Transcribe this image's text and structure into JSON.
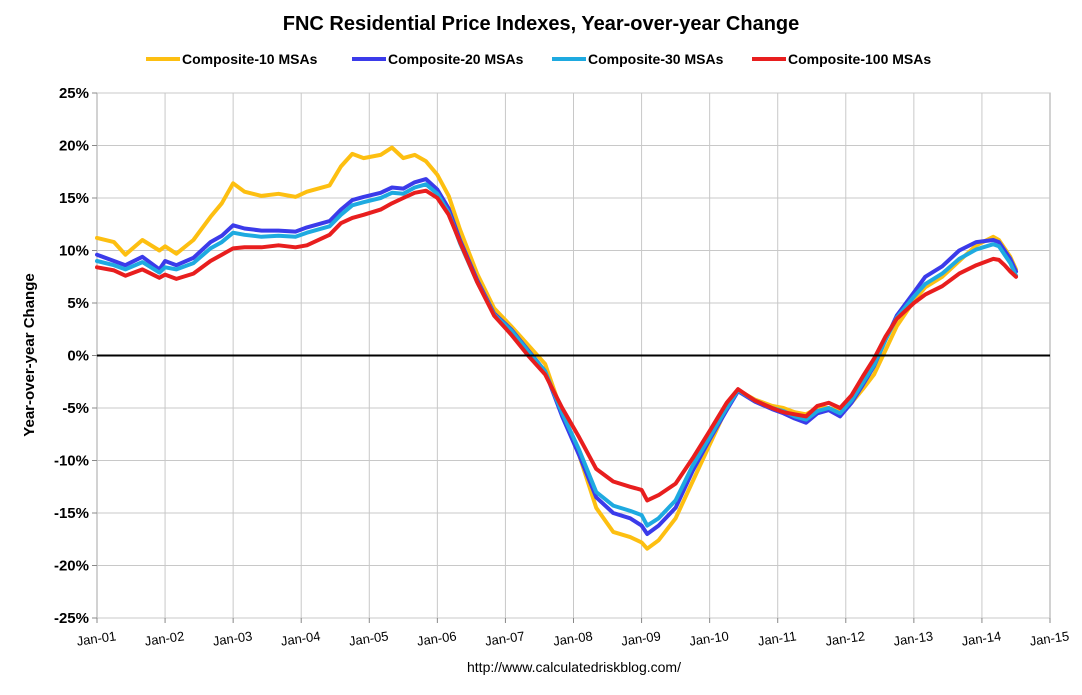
{
  "chart_data": {
    "type": "line",
    "title": "FNC Residential Price Indexes, Year-over-year Change",
    "ylabel": "Year-over-year Change",
    "xlabel": "",
    "source": "http://www.calculatedriskblog.com/",
    "ylim": [
      -25,
      25
    ],
    "xlim": [
      "2001-01",
      "2015-01"
    ],
    "grid": true,
    "legend_position": "top",
    "y_ticks": [
      25,
      20,
      15,
      10,
      5,
      0,
      -5,
      -10,
      -15,
      -20,
      -25
    ],
    "y_tick_labels": [
      "25%",
      "20%",
      "15%",
      "10%",
      "5%",
      "0%",
      "-5%",
      "-10%",
      "-15%",
      "-20%",
      "-25%"
    ],
    "x_tick_labels": [
      "Jan-01",
      "Jan-02",
      "Jan-03",
      "Jan-04",
      "Jan-05",
      "Jan-06",
      "Jan-07",
      "Jan-08",
      "Jan-09",
      "Jan-10",
      "Jan-11",
      "Jan-12",
      "Jan-13",
      "Jan-14",
      "Jan-15"
    ],
    "series": [
      {
        "name": "Composite-10 MSAs",
        "color": "#FDBF11",
        "points": [
          [
            "2001-01",
            11.2
          ],
          [
            "2001-04",
            10.8
          ],
          [
            "2001-06",
            9.6
          ],
          [
            "2001-09",
            11.0
          ],
          [
            "2001-12",
            10.0
          ],
          [
            "2002-01",
            10.4
          ],
          [
            "2002-03",
            9.7
          ],
          [
            "2002-06",
            11.0
          ],
          [
            "2002-09",
            13.2
          ],
          [
            "2002-11",
            14.5
          ],
          [
            "2003-01",
            16.4
          ],
          [
            "2003-03",
            15.6
          ],
          [
            "2003-06",
            15.2
          ],
          [
            "2003-09",
            15.4
          ],
          [
            "2003-12",
            15.1
          ],
          [
            "2004-02",
            15.6
          ],
          [
            "2004-06",
            16.2
          ],
          [
            "2004-08",
            18.0
          ],
          [
            "2004-10",
            19.2
          ],
          [
            "2004-12",
            18.8
          ],
          [
            "2005-03",
            19.1
          ],
          [
            "2005-05",
            19.8
          ],
          [
            "2005-07",
            18.8
          ],
          [
            "2005-09",
            19.1
          ],
          [
            "2005-11",
            18.5
          ],
          [
            "2006-01",
            17.2
          ],
          [
            "2006-03",
            15.2
          ],
          [
            "2006-05",
            12.0
          ],
          [
            "2006-08",
            7.8
          ],
          [
            "2006-11",
            4.5
          ],
          [
            "2007-02",
            2.8
          ],
          [
            "2007-05",
            1.0
          ],
          [
            "2007-08",
            -0.8
          ],
          [
            "2007-11",
            -5.5
          ],
          [
            "2008-02",
            -9.5
          ],
          [
            "2008-05",
            -14.5
          ],
          [
            "2008-08",
            -16.8
          ],
          [
            "2008-11",
            -17.3
          ],
          [
            "2009-01",
            -17.8
          ],
          [
            "2009-02",
            -18.4
          ],
          [
            "2009-04",
            -17.6
          ],
          [
            "2009-07",
            -15.5
          ],
          [
            "2009-10",
            -12.0
          ],
          [
            "2010-01",
            -8.5
          ],
          [
            "2010-04",
            -5.0
          ],
          [
            "2010-06",
            -3.3
          ],
          [
            "2010-09",
            -4.2
          ],
          [
            "2010-12",
            -4.8
          ],
          [
            "2011-02",
            -5.0
          ],
          [
            "2011-04",
            -5.4
          ],
          [
            "2011-06",
            -5.6
          ],
          [
            "2011-08",
            -5.0
          ],
          [
            "2011-10",
            -5.0
          ],
          [
            "2011-12",
            -5.3
          ],
          [
            "2012-02",
            -4.5
          ],
          [
            "2012-04",
            -3.2
          ],
          [
            "2012-06",
            -1.8
          ],
          [
            "2012-08",
            0.5
          ],
          [
            "2012-10",
            2.8
          ],
          [
            "2013-01",
            5.2
          ],
          [
            "2013-03",
            6.5
          ],
          [
            "2013-06",
            7.5
          ],
          [
            "2013-09",
            9.0
          ],
          [
            "2013-12",
            10.5
          ],
          [
            "2014-03",
            11.3
          ],
          [
            "2014-04",
            11.0
          ],
          [
            "2014-05",
            10.2
          ],
          [
            "2014-06",
            9.4
          ],
          [
            "2014-07",
            8.2
          ]
        ]
      },
      {
        "name": "Composite-20 MSAs",
        "color": "#3B3BEA",
        "points": [
          [
            "2001-01",
            9.6
          ],
          [
            "2001-04",
            9.0
          ],
          [
            "2001-06",
            8.6
          ],
          [
            "2001-09",
            9.4
          ],
          [
            "2001-12",
            8.2
          ],
          [
            "2002-01",
            9.0
          ],
          [
            "2002-03",
            8.6
          ],
          [
            "2002-06",
            9.3
          ],
          [
            "2002-09",
            10.8
          ],
          [
            "2002-11",
            11.4
          ],
          [
            "2003-01",
            12.4
          ],
          [
            "2003-03",
            12.1
          ],
          [
            "2003-06",
            11.9
          ],
          [
            "2003-09",
            11.9
          ],
          [
            "2003-12",
            11.8
          ],
          [
            "2004-02",
            12.2
          ],
          [
            "2004-06",
            12.8
          ],
          [
            "2004-08",
            13.9
          ],
          [
            "2004-10",
            14.8
          ],
          [
            "2004-12",
            15.1
          ],
          [
            "2005-03",
            15.5
          ],
          [
            "2005-05",
            16.0
          ],
          [
            "2005-07",
            15.9
          ],
          [
            "2005-09",
            16.5
          ],
          [
            "2005-11",
            16.8
          ],
          [
            "2006-01",
            15.8
          ],
          [
            "2006-03",
            14.0
          ],
          [
            "2006-05",
            11.0
          ],
          [
            "2006-08",
            7.2
          ],
          [
            "2006-11",
            4.0
          ],
          [
            "2007-02",
            2.5
          ],
          [
            "2007-05",
            0.5
          ],
          [
            "2007-08",
            -1.5
          ],
          [
            "2007-11",
            -5.8
          ],
          [
            "2008-02",
            -9.5
          ],
          [
            "2008-05",
            -13.5
          ],
          [
            "2008-08",
            -15.0
          ],
          [
            "2008-11",
            -15.5
          ],
          [
            "2009-01",
            -16.2
          ],
          [
            "2009-02",
            -17.0
          ],
          [
            "2009-04",
            -16.2
          ],
          [
            "2009-07",
            -14.5
          ],
          [
            "2009-10",
            -11.0
          ],
          [
            "2010-01",
            -8.0
          ],
          [
            "2010-04",
            -5.2
          ],
          [
            "2010-06",
            -3.4
          ],
          [
            "2010-09",
            -4.4
          ],
          [
            "2010-12",
            -5.1
          ],
          [
            "2011-02",
            -5.5
          ],
          [
            "2011-04",
            -6.0
          ],
          [
            "2011-06",
            -6.4
          ],
          [
            "2011-08",
            -5.5
          ],
          [
            "2011-10",
            -5.2
          ],
          [
            "2011-12",
            -5.8
          ],
          [
            "2012-02",
            -4.5
          ],
          [
            "2012-04",
            -2.8
          ],
          [
            "2012-06",
            -1.0
          ],
          [
            "2012-08",
            1.5
          ],
          [
            "2012-10",
            3.8
          ],
          [
            "2013-01",
            6.0
          ],
          [
            "2013-03",
            7.5
          ],
          [
            "2013-06",
            8.5
          ],
          [
            "2013-09",
            10.0
          ],
          [
            "2013-12",
            10.8
          ],
          [
            "2014-03",
            11.0
          ],
          [
            "2014-04",
            10.8
          ],
          [
            "2014-05",
            10.0
          ],
          [
            "2014-06",
            9.2
          ],
          [
            "2014-07",
            8.0
          ]
        ]
      },
      {
        "name": "Composite-30 MSAs",
        "color": "#1EAAE0",
        "points": [
          [
            "2001-01",
            9.0
          ],
          [
            "2001-04",
            8.6
          ],
          [
            "2001-06",
            8.2
          ],
          [
            "2001-09",
            8.9
          ],
          [
            "2001-12",
            7.9
          ],
          [
            "2002-01",
            8.4
          ],
          [
            "2002-03",
            8.2
          ],
          [
            "2002-06",
            8.8
          ],
          [
            "2002-09",
            10.2
          ],
          [
            "2002-11",
            10.8
          ],
          [
            "2003-01",
            11.7
          ],
          [
            "2003-03",
            11.5
          ],
          [
            "2003-06",
            11.3
          ],
          [
            "2003-09",
            11.4
          ],
          [
            "2003-12",
            11.3
          ],
          [
            "2004-02",
            11.7
          ],
          [
            "2004-06",
            12.3
          ],
          [
            "2004-08",
            13.4
          ],
          [
            "2004-10",
            14.3
          ],
          [
            "2004-12",
            14.6
          ],
          [
            "2005-03",
            15.0
          ],
          [
            "2005-05",
            15.5
          ],
          [
            "2005-07",
            15.4
          ],
          [
            "2005-09",
            16.0
          ],
          [
            "2005-11",
            16.3
          ],
          [
            "2006-01",
            15.4
          ],
          [
            "2006-03",
            13.6
          ],
          [
            "2006-05",
            10.7
          ],
          [
            "2006-08",
            7.0
          ],
          [
            "2006-11",
            3.9
          ],
          [
            "2007-02",
            2.4
          ],
          [
            "2007-05",
            0.4
          ],
          [
            "2007-08",
            -1.5
          ],
          [
            "2007-11",
            -5.5
          ],
          [
            "2008-02",
            -9.0
          ],
          [
            "2008-05",
            -13.0
          ],
          [
            "2008-08",
            -14.3
          ],
          [
            "2008-11",
            -14.8
          ],
          [
            "2009-01",
            -15.2
          ],
          [
            "2009-02",
            -16.2
          ],
          [
            "2009-04",
            -15.5
          ],
          [
            "2009-07",
            -13.8
          ],
          [
            "2009-10",
            -10.5
          ],
          [
            "2010-01",
            -7.8
          ],
          [
            "2010-04",
            -5.0
          ],
          [
            "2010-06",
            -3.3
          ],
          [
            "2010-09",
            -4.3
          ],
          [
            "2010-12",
            -5.0
          ],
          [
            "2011-02",
            -5.3
          ],
          [
            "2011-04",
            -5.8
          ],
          [
            "2011-06",
            -6.1
          ],
          [
            "2011-08",
            -5.3
          ],
          [
            "2011-10",
            -5.0
          ],
          [
            "2011-12",
            -5.5
          ],
          [
            "2012-02",
            -4.3
          ],
          [
            "2012-04",
            -2.6
          ],
          [
            "2012-06",
            -0.9
          ],
          [
            "2012-08",
            1.5
          ],
          [
            "2012-10",
            3.6
          ],
          [
            "2013-01",
            5.6
          ],
          [
            "2013-03",
            6.8
          ],
          [
            "2013-06",
            7.8
          ],
          [
            "2013-09",
            9.2
          ],
          [
            "2013-12",
            10.1
          ],
          [
            "2014-03",
            10.6
          ],
          [
            "2014-04",
            10.4
          ],
          [
            "2014-05",
            9.6
          ],
          [
            "2014-06",
            8.8
          ],
          [
            "2014-07",
            7.6
          ]
        ]
      },
      {
        "name": "Composite-100 MSAs",
        "color": "#E81E1E",
        "points": [
          [
            "2001-01",
            8.4
          ],
          [
            "2001-04",
            8.1
          ],
          [
            "2001-06",
            7.6
          ],
          [
            "2001-09",
            8.2
          ],
          [
            "2001-12",
            7.4
          ],
          [
            "2002-01",
            7.7
          ],
          [
            "2002-03",
            7.3
          ],
          [
            "2002-06",
            7.8
          ],
          [
            "2002-09",
            9.0
          ],
          [
            "2002-11",
            9.6
          ],
          [
            "2003-01",
            10.2
          ],
          [
            "2003-03",
            10.3
          ],
          [
            "2003-06",
            10.3
          ],
          [
            "2003-09",
            10.5
          ],
          [
            "2003-12",
            10.3
          ],
          [
            "2004-02",
            10.5
          ],
          [
            "2004-06",
            11.5
          ],
          [
            "2004-08",
            12.6
          ],
          [
            "2004-10",
            13.1
          ],
          [
            "2004-12",
            13.4
          ],
          [
            "2005-03",
            13.9
          ],
          [
            "2005-05",
            14.5
          ],
          [
            "2005-07",
            15.0
          ],
          [
            "2005-09",
            15.5
          ],
          [
            "2005-11",
            15.7
          ],
          [
            "2006-01",
            15.0
          ],
          [
            "2006-03",
            13.4
          ],
          [
            "2006-05",
            10.8
          ],
          [
            "2006-08",
            7.0
          ],
          [
            "2006-11",
            3.8
          ],
          [
            "2007-02",
            2.0
          ],
          [
            "2007-05",
            0.0
          ],
          [
            "2007-08",
            -1.8
          ],
          [
            "2007-11",
            -5.0
          ],
          [
            "2008-02",
            -7.8
          ],
          [
            "2008-05",
            -10.8
          ],
          [
            "2008-08",
            -12.0
          ],
          [
            "2008-11",
            -12.5
          ],
          [
            "2009-01",
            -12.8
          ],
          [
            "2009-02",
            -13.8
          ],
          [
            "2009-04",
            -13.3
          ],
          [
            "2009-07",
            -12.2
          ],
          [
            "2009-10",
            -9.8
          ],
          [
            "2010-01",
            -7.2
          ],
          [
            "2010-04",
            -4.5
          ],
          [
            "2010-06",
            -3.2
          ],
          [
            "2010-09",
            -4.3
          ],
          [
            "2010-12",
            -5.0
          ],
          [
            "2011-02",
            -5.4
          ],
          [
            "2011-04",
            -5.6
          ],
          [
            "2011-06",
            -5.8
          ],
          [
            "2011-08",
            -4.8
          ],
          [
            "2011-10",
            -4.5
          ],
          [
            "2011-12",
            -5.0
          ],
          [
            "2012-02",
            -3.8
          ],
          [
            "2012-04",
            -2.0
          ],
          [
            "2012-06",
            -0.3
          ],
          [
            "2012-08",
            1.8
          ],
          [
            "2012-10",
            3.5
          ],
          [
            "2013-01",
            5.0
          ],
          [
            "2013-03",
            5.8
          ],
          [
            "2013-06",
            6.6
          ],
          [
            "2013-09",
            7.8
          ],
          [
            "2013-12",
            8.6
          ],
          [
            "2014-03",
            9.2
          ],
          [
            "2014-04",
            9.1
          ],
          [
            "2014-05",
            8.6
          ],
          [
            "2014-06",
            8.0
          ],
          [
            "2014-07",
            7.5
          ]
        ]
      }
    ]
  }
}
